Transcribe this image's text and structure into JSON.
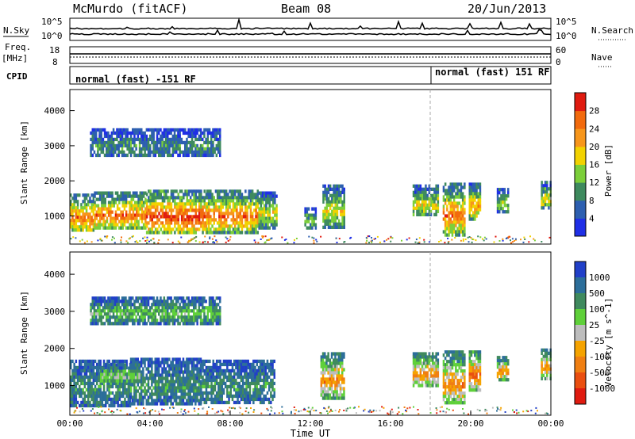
{
  "header": {
    "station": "McMurdo (fitACF)",
    "beam": "Beam 08",
    "date": "20/Jun/2013"
  },
  "colors": {
    "frame": "#000000",
    "mode_marker": "#888888"
  },
  "meta_panels": {
    "nsky_label": "N.Sky",
    "nsky_ticks": [
      "10^5",
      "10^0"
    ],
    "nsearch_label": "N.Search",
    "nsearch_ticks": [
      "10^5",
      "10^0"
    ],
    "freq_label": "Freq.",
    "freq_unit": "[MHz]",
    "freq_ticks": [
      "18",
      "8"
    ],
    "nave_label": "Nave",
    "nave_ticks": [
      "60",
      "0"
    ],
    "cpid_label": "CPID",
    "cpid_modes": [
      {
        "start_hour": 0,
        "text": "normal (fast) -151 RF"
      },
      {
        "start_hour": 18,
        "text": "normal (fast) 151 RF"
      }
    ]
  },
  "chart_data": [
    {
      "type": "heatmap",
      "panel": "power",
      "xlabel": "",
      "ylabel": "Slant Range [km]",
      "ylim": [
        200,
        4600
      ],
      "yticks": [
        "1000",
        "2000",
        "3000",
        "4000"
      ],
      "colorbar_label": "Power [dB]",
      "colorbar_ticks": [
        "4",
        "8",
        "12",
        "16",
        "20",
        "24",
        "28"
      ],
      "colorbar_colors": [
        "#1f2fe6",
        "#2d5fb0",
        "#3e8a5e",
        "#7ccf3a",
        "#f2d200",
        "#f7961b",
        "#f26a0d",
        "#e01b10"
      ],
      "blobs": [
        {
          "t0": 0.0,
          "t1": 1.2,
          "r0": 560,
          "r1": 1640,
          "level": 6
        },
        {
          "t0": 1.2,
          "t1": 3.8,
          "r0": 640,
          "r1": 1700,
          "level": 6
        },
        {
          "t0": 3.8,
          "t1": 6.8,
          "r0": 520,
          "r1": 1750,
          "level": 7
        },
        {
          "t0": 6.8,
          "t1": 9.4,
          "r0": 560,
          "r1": 1750,
          "level": 6
        },
        {
          "t0": 9.4,
          "t1": 10.3,
          "r0": 700,
          "r1": 1700,
          "level": 4
        },
        {
          "t0": 1.0,
          "t1": 7.5,
          "r0": 2700,
          "r1": 3500,
          "level": 2
        },
        {
          "t0": 11.7,
          "t1": 12.3,
          "r0": 650,
          "r1": 1250,
          "level": 3
        },
        {
          "t0": 12.6,
          "t1": 13.7,
          "r0": 700,
          "r1": 1900,
          "level": 4
        },
        {
          "t0": 17.1,
          "t1": 18.4,
          "r0": 1000,
          "r1": 1900,
          "level": 4
        },
        {
          "t0": 18.6,
          "t1": 19.7,
          "r0": 500,
          "r1": 1950,
          "level": 6
        },
        {
          "t0": 19.9,
          "t1": 20.5,
          "r0": 900,
          "r1": 1950,
          "level": 5
        },
        {
          "t0": 21.3,
          "t1": 21.9,
          "r0": 1150,
          "r1": 1800,
          "level": 3
        },
        {
          "t0": 23.5,
          "t1": 24.0,
          "r0": 1200,
          "r1": 2000,
          "level": 4
        }
      ]
    },
    {
      "type": "heatmap",
      "panel": "velocity",
      "xlabel": "Time UT",
      "ylabel": "Slant Range [km]",
      "ylim": [
        200,
        4600
      ],
      "yticks": [
        "1000",
        "2000",
        "3000",
        "4000"
      ],
      "xticks": [
        "00:00",
        "04:00",
        "08:00",
        "12:00",
        "16:00",
        "20:00",
        "00:00"
      ],
      "xlim_hours": [
        0,
        24
      ],
      "colorbar_label": "Velocity [m s^-1]",
      "colorbar_ticks": [
        "1000",
        "500",
        "100",
        "25",
        "-25",
        "-100",
        "-500",
        "-1000"
      ],
      "colorbar_colors": [
        "#2140c8",
        "#2c6e9a",
        "#3f8a5e",
        "#5fd03a",
        "#bdbdbd",
        "#f5a300",
        "#f07f12",
        "#ea4f10",
        "#e01b10"
      ],
      "blobs": [
        {
          "t0": 0.0,
          "t1": 3.0,
          "r0": 500,
          "r1": 1700,
          "level": 2
        },
        {
          "t0": 3.0,
          "t1": 6.5,
          "r0": 500,
          "r1": 1750,
          "level": 2
        },
        {
          "t0": 6.5,
          "t1": 10.2,
          "r0": 550,
          "r1": 1700,
          "level": 2
        },
        {
          "t0": 1.5,
          "t1": 3.5,
          "r0": 1100,
          "r1": 1600,
          "level": 4
        },
        {
          "t0": 1.0,
          "t1": 7.5,
          "r0": 2700,
          "r1": 3400,
          "level": 3
        },
        {
          "t0": 12.5,
          "t1": 13.7,
          "r0": 700,
          "r1": 1900,
          "level": 6
        },
        {
          "t0": 17.1,
          "t1": 18.4,
          "r0": 1000,
          "r1": 1900,
          "level": 6
        },
        {
          "t0": 18.6,
          "t1": 19.7,
          "r0": 500,
          "r1": 1950,
          "level": 6
        },
        {
          "t0": 19.9,
          "t1": 20.5,
          "r0": 900,
          "r1": 1950,
          "level": 7
        },
        {
          "t0": 21.3,
          "t1": 21.9,
          "r0": 1150,
          "r1": 1800,
          "level": 6
        },
        {
          "t0": 23.5,
          "t1": 24.0,
          "r0": 1200,
          "r1": 2000,
          "level": 6
        }
      ]
    }
  ]
}
